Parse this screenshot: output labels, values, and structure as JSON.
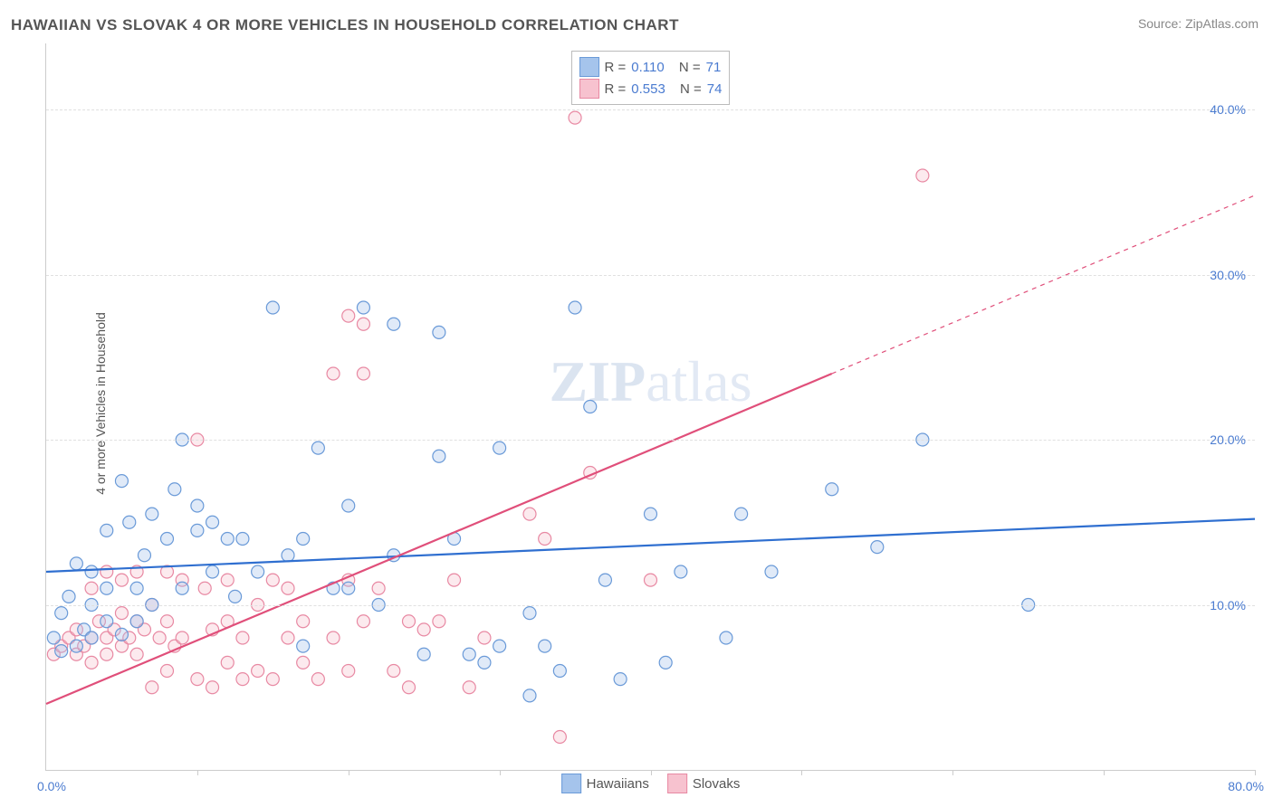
{
  "title": "HAWAIIAN VS SLOVAK 4 OR MORE VEHICLES IN HOUSEHOLD CORRELATION CHART",
  "source": "Source: ZipAtlas.com",
  "y_axis_label": "4 or more Vehicles in Household",
  "watermark_a": "ZIP",
  "watermark_b": "atlas",
  "chart": {
    "type": "scatter-correlation",
    "background_color": "#ffffff",
    "grid_color": "#e0e0e0",
    "axis_color": "#cccccc",
    "tick_label_color": "#4a7bd0",
    "xlim": [
      0,
      80
    ],
    "ylim": [
      0,
      44
    ],
    "y_ticks": [
      10,
      20,
      30,
      40
    ],
    "y_tick_labels": [
      "10.0%",
      "20.0%",
      "30.0%",
      "40.0%"
    ],
    "x_ticks": [
      10,
      20,
      30,
      40,
      50,
      60,
      70,
      80
    ],
    "x_origin_label": "0.0%",
    "x_max_label": "80.0%",
    "marker_radius": 7,
    "marker_fill_opacity": 0.35,
    "marker_stroke_width": 1.2,
    "line_width": 2.2
  },
  "series": {
    "hawaiians": {
      "label": "Hawaiians",
      "color_fill": "#a5c4ec",
      "color_stroke": "#6a9ad8",
      "line_color": "#2f6fd0",
      "R_label": "R =",
      "R": "0.110",
      "N_label": "N =",
      "N": "71",
      "regression": {
        "x1": 0,
        "y1": 12.0,
        "x2": 80,
        "y2": 15.2
      },
      "points": [
        [
          0.5,
          8.0
        ],
        [
          1,
          9.5
        ],
        [
          1,
          7.2
        ],
        [
          1.5,
          10.5
        ],
        [
          2,
          7.5
        ],
        [
          2,
          12.5
        ],
        [
          2.5,
          8.5
        ],
        [
          3,
          10.0
        ],
        [
          3,
          12.0
        ],
        [
          4,
          14.5
        ],
        [
          4,
          9.0
        ],
        [
          5,
          17.5
        ],
        [
          5,
          8.2
        ],
        [
          5.5,
          15.0
        ],
        [
          6,
          11.0
        ],
        [
          6.5,
          13.0
        ],
        [
          7,
          15.5
        ],
        [
          7,
          10.0
        ],
        [
          8,
          14.0
        ],
        [
          8.5,
          17.0
        ],
        [
          9,
          11.0
        ],
        [
          9,
          20.0
        ],
        [
          10,
          14.5
        ],
        [
          10,
          16.0
        ],
        [
          11,
          12.0
        ],
        [
          11,
          15.0
        ],
        [
          12,
          14.0
        ],
        [
          12.5,
          10.5
        ],
        [
          13,
          14.0
        ],
        [
          14,
          12.0
        ],
        [
          15,
          28.0
        ],
        [
          16,
          13.0
        ],
        [
          17,
          14.0
        ],
        [
          17,
          7.5
        ],
        [
          18,
          19.5
        ],
        [
          19,
          11.0
        ],
        [
          20,
          11.0
        ],
        [
          20,
          16.0
        ],
        [
          21,
          28.0
        ],
        [
          22,
          10.0
        ],
        [
          23,
          13.0
        ],
        [
          23,
          27.0
        ],
        [
          25,
          7.0
        ],
        [
          26,
          19.0
        ],
        [
          26,
          26.5
        ],
        [
          27,
          14.0
        ],
        [
          28,
          7.0
        ],
        [
          29,
          6.5
        ],
        [
          30,
          7.5
        ],
        [
          30,
          19.5
        ],
        [
          32,
          4.5
        ],
        [
          32,
          9.5
        ],
        [
          33,
          7.5
        ],
        [
          34,
          6.0
        ],
        [
          35,
          28.0
        ],
        [
          36,
          22.0
        ],
        [
          37,
          11.5
        ],
        [
          38,
          5.5
        ],
        [
          40,
          15.5
        ],
        [
          41,
          6.5
        ],
        [
          42,
          12.0
        ],
        [
          45,
          8.0
        ],
        [
          46,
          15.5
        ],
        [
          48,
          12.0
        ],
        [
          52,
          17.0
        ],
        [
          55,
          13.5
        ],
        [
          58,
          20.0
        ],
        [
          65,
          10.0
        ],
        [
          3,
          8.0
        ],
        [
          4,
          11.0
        ],
        [
          6,
          9.0
        ]
      ]
    },
    "slovaks": {
      "label": "Slovaks",
      "color_fill": "#f7c2cf",
      "color_stroke": "#e889a3",
      "line_color": "#e04f7a",
      "R_label": "R =",
      "R": "0.553",
      "N_label": "N =",
      "N": "74",
      "regression_solid": {
        "x1": 0,
        "y1": 4.0,
        "x2": 52,
        "y2": 24.0
      },
      "regression_dashed": {
        "x1": 52,
        "y1": 24.0,
        "x2": 80,
        "y2": 34.8
      },
      "points": [
        [
          0.5,
          7.0
        ],
        [
          1,
          7.5
        ],
        [
          1.5,
          8.0
        ],
        [
          2,
          7.0
        ],
        [
          2,
          8.5
        ],
        [
          2.5,
          7.5
        ],
        [
          3,
          8.0
        ],
        [
          3,
          6.5
        ],
        [
          3.5,
          9.0
        ],
        [
          4,
          7.0
        ],
        [
          4,
          8.0
        ],
        [
          4.5,
          8.5
        ],
        [
          5,
          7.5
        ],
        [
          5,
          9.5
        ],
        [
          5.5,
          8.0
        ],
        [
          6,
          7.0
        ],
        [
          6,
          9.0
        ],
        [
          6.5,
          8.5
        ],
        [
          7,
          5.0
        ],
        [
          7,
          10.0
        ],
        [
          7.5,
          8.0
        ],
        [
          8,
          6.0
        ],
        [
          8,
          9.0
        ],
        [
          8.5,
          7.5
        ],
        [
          9,
          11.5
        ],
        [
          9,
          8.0
        ],
        [
          10,
          5.5
        ],
        [
          10,
          20.0
        ],
        [
          10.5,
          11.0
        ],
        [
          11,
          5.0
        ],
        [
          11,
          8.5
        ],
        [
          12,
          11.5
        ],
        [
          12,
          6.5
        ],
        [
          13,
          8.0
        ],
        [
          13,
          5.5
        ],
        [
          14,
          6.0
        ],
        [
          14,
          10.0
        ],
        [
          15,
          11.5
        ],
        [
          15,
          5.5
        ],
        [
          16,
          8.0
        ],
        [
          16,
          11.0
        ],
        [
          17,
          6.5
        ],
        [
          17,
          9.0
        ],
        [
          18,
          5.5
        ],
        [
          19,
          8.0
        ],
        [
          19,
          24.0
        ],
        [
          20,
          11.5
        ],
        [
          20,
          6.0
        ],
        [
          20,
          27.5
        ],
        [
          21,
          24.0
        ],
        [
          21,
          9.0
        ],
        [
          21,
          27.0
        ],
        [
          22,
          11.0
        ],
        [
          23,
          6.0
        ],
        [
          24,
          9.0
        ],
        [
          24,
          5.0
        ],
        [
          25,
          8.5
        ],
        [
          26,
          9.0
        ],
        [
          27,
          11.5
        ],
        [
          28,
          5.0
        ],
        [
          29,
          8.0
        ],
        [
          32,
          15.5
        ],
        [
          33,
          14.0
        ],
        [
          34,
          2.0
        ],
        [
          35,
          39.5
        ],
        [
          36,
          18.0
        ],
        [
          40,
          11.5
        ],
        [
          3,
          11.0
        ],
        [
          4,
          12.0
        ],
        [
          5,
          11.5
        ],
        [
          6,
          12.0
        ],
        [
          8,
          12.0
        ],
        [
          58,
          36.0
        ],
        [
          12,
          9.0
        ]
      ]
    }
  },
  "legend_bottom": [
    "Hawaiians",
    "Slovaks"
  ]
}
